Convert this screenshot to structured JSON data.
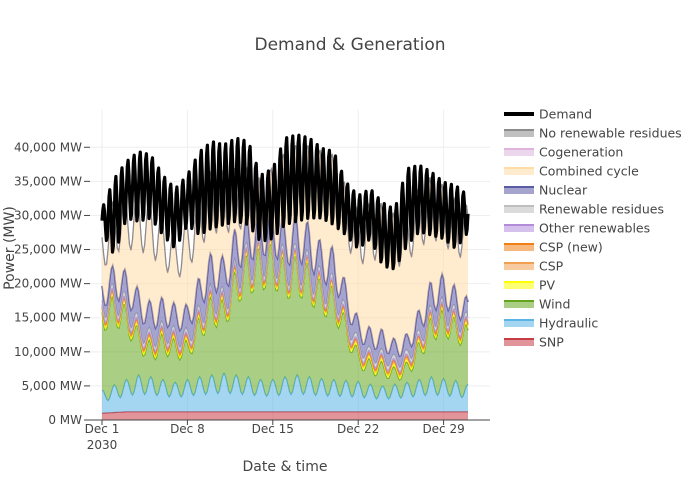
{
  "chart_data": {
    "type": "area",
    "title": "Demand & Generation",
    "xlabel": "Date & time",
    "ylabel": "Power (MW)",
    "ylim": [
      0,
      44000
    ],
    "grid": true,
    "legend_position": "right",
    "x_ticks": [
      {
        "day": 1,
        "label": "Dec 1",
        "sublabel": "2030"
      },
      {
        "day": 8,
        "label": "Dec 8"
      },
      {
        "day": 15,
        "label": "Dec 15"
      },
      {
        "day": 22,
        "label": "Dec 22"
      },
      {
        "day": 29,
        "label": "Dec 29"
      }
    ],
    "y_ticks": [
      {
        "value": 0,
        "label": "0 MW"
      },
      {
        "value": 5000,
        "label": "5,000 MW"
      },
      {
        "value": 10000,
        "label": "10,000 MW"
      },
      {
        "value": 15000,
        "label": "15,000 MW"
      },
      {
        "value": 20000,
        "label": "20,000 MW"
      },
      {
        "value": 25000,
        "label": "25,000 MW"
      },
      {
        "value": 30000,
        "label": "30,000 MW"
      },
      {
        "value": 35000,
        "label": "35,000 MW"
      },
      {
        "value": 40000,
        "label": "40,000 MW"
      }
    ],
    "x": [
      "Dec 1",
      "Dec 2",
      "Dec 3",
      "Dec 4",
      "Dec 5",
      "Dec 6",
      "Dec 7",
      "Dec 8",
      "Dec 9",
      "Dec 10",
      "Dec 11",
      "Dec 12",
      "Dec 13",
      "Dec 14",
      "Dec 15",
      "Dec 16",
      "Dec 17",
      "Dec 18",
      "Dec 19",
      "Dec 20",
      "Dec 21",
      "Dec 22",
      "Dec 23",
      "Dec 24",
      "Dec 25",
      "Dec 26",
      "Dec 27",
      "Dec 28",
      "Dec 29",
      "Dec 30",
      "Dec 31"
    ],
    "demand": {
      "name": "Demand",
      "color": "#000000",
      "low": [
        27500,
        24000,
        29500,
        29000,
        29500,
        27000,
        25000,
        28500,
        27000,
        28000,
        28500,
        29000,
        28500,
        26000,
        26500,
        28500,
        29000,
        29500,
        29500,
        28500,
        27000,
        25000,
        26500,
        22500,
        22000,
        25500,
        27500,
        27000,
        26500,
        25000,
        27500
      ],
      "high": [
        31000,
        35500,
        38000,
        39500,
        39000,
        36000,
        34000,
        36000,
        39500,
        41000,
        40500,
        41500,
        41000,
        36000,
        37000,
        41500,
        42000,
        41500,
        40000,
        39500,
        35000,
        33000,
        34000,
        32000,
        31000,
        37000,
        37500,
        36500,
        35000,
        34500,
        33000
      ]
    },
    "series": [
      {
        "name": "SNP",
        "color": "#c83c46",
        "values": [
          1000,
          1100,
          1200,
          1200,
          1200,
          1200,
          1200,
          1200,
          1200,
          1200,
          1200,
          1200,
          1200,
          1200,
          1200,
          1200,
          1200,
          1200,
          1200,
          1200,
          1200,
          1200,
          1200,
          1200,
          1200,
          1200,
          1200,
          1200,
          1200,
          1200,
          1200
        ]
      },
      {
        "name": "Hydraulic",
        "color": "#5ab4e6",
        "values": [
          2500,
          3000,
          3500,
          4000,
          3800,
          3500,
          3200,
          3500,
          3800,
          4000,
          4200,
          4000,
          3800,
          3500,
          3500,
          3800,
          4000,
          3800,
          3600,
          3500,
          3400,
          3300,
          3000,
          2800,
          3000,
          3200,
          3500,
          3800,
          3600,
          3400,
          3000
        ]
      },
      {
        "name": "Wind",
        "color": "#64a51e",
        "values": [
          11500,
          12000,
          10000,
          6500,
          5000,
          6500,
          6000,
          5500,
          8500,
          11000,
          10000,
          14500,
          16500,
          17500,
          18000,
          15500,
          16000,
          15000,
          13000,
          12500,
          8500,
          4500,
          3500,
          3500,
          2500,
          3000,
          5500,
          8500,
          9500,
          8500,
          8000
        ]
      },
      {
        "name": "PV",
        "color": "#ffff00",
        "values": [
          400,
          400,
          400,
          400,
          400,
          400,
          400,
          400,
          400,
          400,
          400,
          400,
          400,
          400,
          400,
          400,
          400,
          400,
          400,
          400,
          400,
          400,
          400,
          400,
          400,
          400,
          400,
          400,
          400,
          400,
          400
        ]
      },
      {
        "name": "CSP",
        "color": "#f0a050",
        "values": [
          300,
          300,
          300,
          300,
          300,
          300,
          300,
          300,
          300,
          300,
          300,
          300,
          300,
          300,
          300,
          300,
          300,
          300,
          300,
          300,
          300,
          300,
          300,
          300,
          300,
          300,
          300,
          300,
          300,
          300,
          300
        ]
      },
      {
        "name": "CSP (new)",
        "color": "#f08014",
        "values": [
          200,
          200,
          200,
          200,
          200,
          200,
          200,
          200,
          200,
          200,
          200,
          200,
          200,
          200,
          200,
          200,
          200,
          200,
          200,
          200,
          200,
          200,
          200,
          200,
          200,
          200,
          200,
          200,
          200,
          200,
          200
        ]
      },
      {
        "name": "Other renewables",
        "color": "#b48cdc",
        "values": [
          300,
          300,
          300,
          300,
          300,
          300,
          300,
          300,
          300,
          300,
          300,
          300,
          300,
          300,
          300,
          300,
          300,
          300,
          300,
          300,
          300,
          300,
          300,
          300,
          300,
          300,
          300,
          300,
          300,
          300,
          300
        ]
      },
      {
        "name": "Renewable residues",
        "color": "#bebebe",
        "values": [
          600,
          600,
          600,
          600,
          600,
          600,
          600,
          600,
          600,
          600,
          600,
          600,
          600,
          600,
          600,
          600,
          600,
          600,
          600,
          600,
          600,
          600,
          600,
          600,
          600,
          600,
          600,
          600,
          600,
          600,
          600
        ]
      },
      {
        "name": "Nuclear",
        "color": "#5a5aa5",
        "values": [
          1800,
          2500,
          3000,
          3500,
          3500,
          3000,
          3000,
          3000,
          3500,
          4000,
          4000,
          3800,
          3500,
          3500,
          3500,
          3500,
          3800,
          3800,
          3500,
          3500,
          3000,
          2500,
          2500,
          2500,
          2000,
          2000,
          2500,
          3000,
          3000,
          2500,
          2000
        ]
      },
      {
        "name": "Combined cycle",
        "color": "#ffdca5",
        "values": [
          6400,
          8000,
          9500,
          12000,
          12800,
          10000,
          8500,
          10500,
          10500,
          10000,
          10500,
          7000,
          5500,
          3500,
          4500,
          8500,
          8500,
          9500,
          11300,
          11400,
          11800,
          13100,
          15500,
          15600,
          15500,
          16000,
          15000,
          12700,
          10800,
          10500,
          11300
        ]
      },
      {
        "name": "Cogeneration",
        "color": "#dcb4dc",
        "values": [
          100,
          100,
          100,
          100,
          100,
          100,
          100,
          100,
          100,
          100,
          100,
          100,
          100,
          100,
          100,
          100,
          100,
          100,
          100,
          100,
          100,
          100,
          100,
          100,
          100,
          100,
          100,
          100,
          100,
          100,
          100
        ]
      },
      {
        "name": "No renewable residues",
        "color": "#8c8c8c",
        "values": [
          100,
          100,
          100,
          100,
          100,
          100,
          100,
          100,
          100,
          100,
          100,
          100,
          100,
          100,
          100,
          100,
          100,
          100,
          100,
          100,
          100,
          100,
          100,
          100,
          100,
          100,
          100,
          100,
          100,
          100,
          100
        ]
      }
    ],
    "legend_order": [
      "Demand",
      "No renewable residues",
      "Cogeneration",
      "Combined cycle",
      "Nuclear",
      "Renewable residues",
      "Other renewables",
      "CSP (new)",
      "CSP",
      "PV",
      "Wind",
      "Hydraulic",
      "SNP"
    ]
  }
}
